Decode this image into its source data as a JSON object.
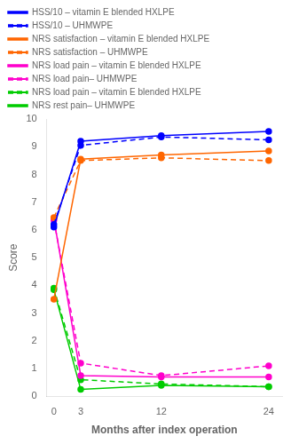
{
  "chart_data": {
    "type": "line",
    "xlabel": "Months after index operation",
    "ylabel": "Score",
    "x": [
      0,
      3,
      12,
      24
    ],
    "series": [
      {
        "name": "HSS/10 – vitamin E blended HXLPE",
        "color": "#0000FF",
        "line_style": "solid",
        "marker": "circle",
        "values": [
          6.1,
          9.2,
          9.4,
          9.55
        ]
      },
      {
        "name": "HSS/10 – UHMWPE",
        "color": "#0000FF",
        "line_style": "dashed",
        "marker": "circle",
        "values": [
          6.2,
          9.05,
          9.35,
          9.25
        ]
      },
      {
        "name": "NRS satisfaction – vitamin E blended HXLPE",
        "color": "#FF6600",
        "line_style": "solid",
        "marker": "circle",
        "values": [
          3.5,
          8.55,
          8.7,
          8.85
        ]
      },
      {
        "name": "NRS satisfaction – UHMWPE",
        "color": "#FF6600",
        "line_style": "dashed",
        "marker": "circle",
        "values": [
          6.45,
          8.5,
          8.6,
          8.5
        ]
      },
      {
        "name": "NRS load pain – vitamin E blended HXLPE",
        "color": "#FF00CC",
        "line_style": "solid",
        "marker": "circle",
        "values": [
          6.4,
          0.75,
          0.7,
          0.7
        ]
      },
      {
        "name": "NRS load pain– UHMWPE",
        "color": "#FF00CC",
        "line_style": "dashed",
        "marker": "circle",
        "values": [
          6.35,
          1.2,
          0.75,
          1.1
        ]
      },
      {
        "name": "NRS load pain – vitamin E blended HXLPE",
        "color": "#00CC00",
        "line_style": "dashed",
        "marker": "circle",
        "values": [
          3.9,
          0.6,
          0.45,
          0.35
        ]
      },
      {
        "name": "NRS rest pain– UHMWPE",
        "color": "#00CC00",
        "line_style": "solid",
        "marker": "circle",
        "values": [
          3.85,
          0.25,
          0.4,
          0.35
        ]
      }
    ],
    "xlim": [
      -0.8,
      25.5
    ],
    "ylim": [
      0,
      10
    ],
    "xticks": [
      0,
      3,
      12,
      24
    ],
    "yticks": [
      0,
      1,
      2,
      3,
      4,
      5,
      6,
      7,
      8,
      9,
      10
    ],
    "grid": false,
    "legend": "top"
  }
}
